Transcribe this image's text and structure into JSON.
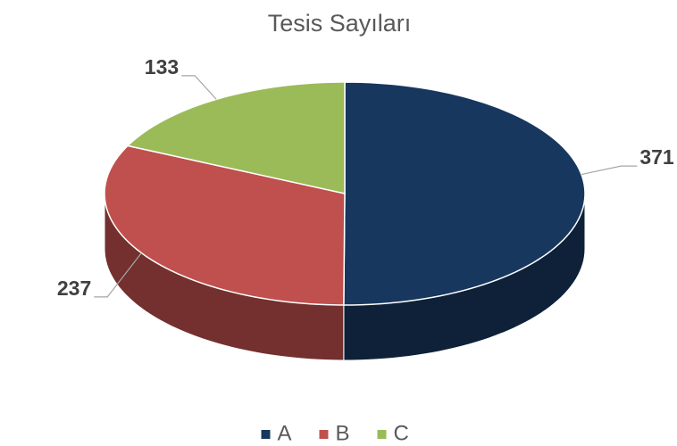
{
  "chart_data": {
    "type": "pie",
    "title": "Tesis Sayıları",
    "categories": [
      "A",
      "B",
      "C"
    ],
    "values": [
      371,
      237,
      133
    ],
    "colors": [
      "#17375e",
      "#c0504d",
      "#9bbb59"
    ],
    "legend": "bottom"
  }
}
